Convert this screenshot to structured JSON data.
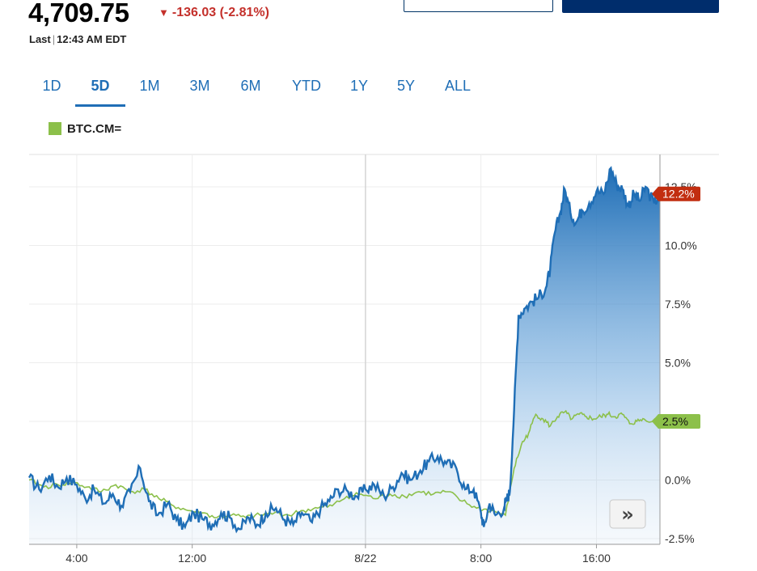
{
  "quote": {
    "price": "4,709.75",
    "change": "-136.03 (-2.81%)",
    "last_label": "Last",
    "last_time": "12:43 AM EDT"
  },
  "tabs": [
    "1D",
    "5D",
    "1M",
    "3M",
    "6M",
    "YTD",
    "1Y",
    "5Y",
    "ALL"
  ],
  "active_tab": "5D",
  "legend": {
    "symbol": "BTC.CM=",
    "color": "#8cc04a"
  },
  "colors": {
    "main_line": "#1f6eb6",
    "compare_line": "#8cc04a",
    "down": "#c4302b",
    "badge_main": "#c22e10",
    "badge_compare": "#8cc04a"
  },
  "scroll_button": {
    "icon": "double-chevron-right-icon",
    "glyph": "»"
  },
  "chart_data": {
    "type": "area",
    "y_unit": "%",
    "y_ticks": [
      "12.5%",
      "10.0%",
      "7.5%",
      "5.0%",
      "2.5%",
      "0.0%",
      "-2.5%"
    ],
    "y_tick_values": [
      12.5,
      10.0,
      7.5,
      5.0,
      2.5,
      0.0,
      -2.5
    ],
    "x_ticks": [
      "4:00",
      "12:00",
      "8/22",
      "8:00",
      "16:00"
    ],
    "x_tick_values": [
      -5,
      3,
      15,
      23,
      31
    ],
    "x_unit": "hours from 8/22 00:00 (estimated)",
    "x_range": [
      -8.3,
      35.4
    ],
    "y_range": [
      -2.7,
      13.5
    ],
    "series": [
      {
        "name": "",
        "role": "main",
        "last_label": "12.2%",
        "points": [
          [
            -8.3,
            0.1
          ],
          [
            -7.6,
            -0.4
          ],
          [
            -6.9,
            0.2
          ],
          [
            -6.3,
            -0.3
          ],
          [
            -5.7,
            0.1
          ],
          [
            -5.0,
            -0.2
          ],
          [
            -4.4,
            -0.8
          ],
          [
            -3.8,
            -0.4
          ],
          [
            -3.1,
            -1.0
          ],
          [
            -2.5,
            -0.6
          ],
          [
            -1.9,
            -1.1
          ],
          [
            -1.3,
            -0.5
          ],
          [
            -0.6,
            0.5
          ],
          [
            0.0,
            -0.9
          ],
          [
            0.6,
            -1.5
          ],
          [
            1.3,
            -1.0
          ],
          [
            1.9,
            -1.7
          ],
          [
            2.5,
            -2.0
          ],
          [
            3.1,
            -1.4
          ],
          [
            3.8,
            -1.7
          ],
          [
            4.4,
            -1.9
          ],
          [
            5.0,
            -1.4
          ],
          [
            5.6,
            -1.6
          ],
          [
            6.3,
            -2.1
          ],
          [
            6.9,
            -1.6
          ],
          [
            7.5,
            -1.9
          ],
          [
            8.1,
            -1.4
          ],
          [
            8.8,
            -1.2
          ],
          [
            9.4,
            -1.7
          ],
          [
            10.0,
            -1.9
          ],
          [
            10.6,
            -1.4
          ],
          [
            11.3,
            -1.8
          ],
          [
            11.9,
            -1.2
          ],
          [
            12.5,
            -0.9
          ],
          [
            13.1,
            -0.4
          ],
          [
            13.8,
            -0.5
          ],
          [
            14.4,
            -0.7
          ],
          [
            15.0,
            -0.4
          ],
          [
            15.6,
            -0.2
          ],
          [
            16.3,
            -0.7
          ],
          [
            16.9,
            -0.3
          ],
          [
            17.5,
            0.3
          ],
          [
            18.1,
            0.0
          ],
          [
            18.8,
            0.4
          ],
          [
            19.4,
            0.8
          ],
          [
            20.0,
            1.0
          ],
          [
            20.6,
            0.7
          ],
          [
            21.3,
            0.5
          ],
          [
            21.9,
            -0.4
          ],
          [
            22.5,
            -0.4
          ],
          [
            23.0,
            -1.4
          ],
          [
            23.2,
            -2.0
          ],
          [
            23.6,
            -1.0
          ],
          [
            24.0,
            -1.5
          ],
          [
            24.6,
            -1.2
          ],
          [
            24.8,
            -0.8
          ],
          [
            25.0,
            -0.5
          ],
          [
            25.3,
            3.0
          ],
          [
            25.6,
            7.0
          ],
          [
            26.0,
            7.3
          ],
          [
            26.5,
            7.6
          ],
          [
            27.0,
            7.8
          ],
          [
            27.5,
            8.2
          ],
          [
            27.8,
            9.0
          ],
          [
            28.1,
            10.5
          ],
          [
            28.5,
            11.4
          ],
          [
            28.8,
            12.4
          ],
          [
            29.2,
            11.4
          ],
          [
            29.6,
            11.0
          ],
          [
            30.0,
            11.5
          ],
          [
            30.5,
            11.8
          ],
          [
            31.0,
            12.3
          ],
          [
            31.5,
            12.2
          ],
          [
            32.0,
            13.3
          ],
          [
            32.4,
            12.6
          ],
          [
            32.8,
            12.4
          ],
          [
            33.2,
            11.7
          ],
          [
            33.6,
            12.2
          ],
          [
            34.0,
            11.9
          ],
          [
            34.4,
            12.5
          ],
          [
            35.0,
            11.8
          ],
          [
            35.4,
            12.2
          ]
        ]
      },
      {
        "name": "BTC.CM=",
        "role": "compare",
        "last_label": "2.5%",
        "points": [
          [
            -8.3,
            0.0
          ],
          [
            -7.3,
            -0.3
          ],
          [
            -6.3,
            -0.2
          ],
          [
            -5.3,
            -0.1
          ],
          [
            -4.3,
            -0.3
          ],
          [
            -3.3,
            -0.5
          ],
          [
            -2.3,
            -0.2
          ],
          [
            -1.3,
            -0.5
          ],
          [
            -0.3,
            -0.4
          ],
          [
            0.7,
            -0.8
          ],
          [
            1.7,
            -1.1
          ],
          [
            2.7,
            -1.3
          ],
          [
            3.7,
            -1.4
          ],
          [
            4.7,
            -1.6
          ],
          [
            5.7,
            -1.5
          ],
          [
            6.7,
            -1.6
          ],
          [
            7.7,
            -1.5
          ],
          [
            8.7,
            -1.4
          ],
          [
            9.7,
            -1.5
          ],
          [
            10.7,
            -1.3
          ],
          [
            11.7,
            -1.2
          ],
          [
            12.7,
            -1.1
          ],
          [
            13.7,
            -0.7
          ],
          [
            14.7,
            -0.6
          ],
          [
            15.7,
            -0.8
          ],
          [
            16.7,
            -0.6
          ],
          [
            17.7,
            -0.7
          ],
          [
            18.7,
            -0.5
          ],
          [
            19.7,
            -0.6
          ],
          [
            20.7,
            -0.5
          ],
          [
            21.7,
            -0.9
          ],
          [
            22.7,
            -1.2
          ],
          [
            23.7,
            -1.3
          ],
          [
            24.7,
            -1.5
          ],
          [
            25.3,
            0.5
          ],
          [
            25.8,
            1.5
          ],
          [
            26.3,
            2.0
          ],
          [
            26.8,
            2.8
          ],
          [
            27.3,
            2.6
          ],
          [
            27.8,
            2.3
          ],
          [
            28.3,
            2.7
          ],
          [
            28.8,
            2.9
          ],
          [
            29.3,
            2.6
          ],
          [
            29.8,
            2.8
          ],
          [
            30.3,
            2.7
          ],
          [
            30.8,
            2.6
          ],
          [
            31.3,
            2.7
          ],
          [
            31.8,
            2.8
          ],
          [
            32.3,
            2.7
          ],
          [
            32.8,
            2.8
          ],
          [
            33.3,
            2.4
          ],
          [
            33.8,
            2.5
          ],
          [
            34.3,
            2.6
          ],
          [
            35.4,
            2.5
          ]
        ]
      }
    ]
  }
}
